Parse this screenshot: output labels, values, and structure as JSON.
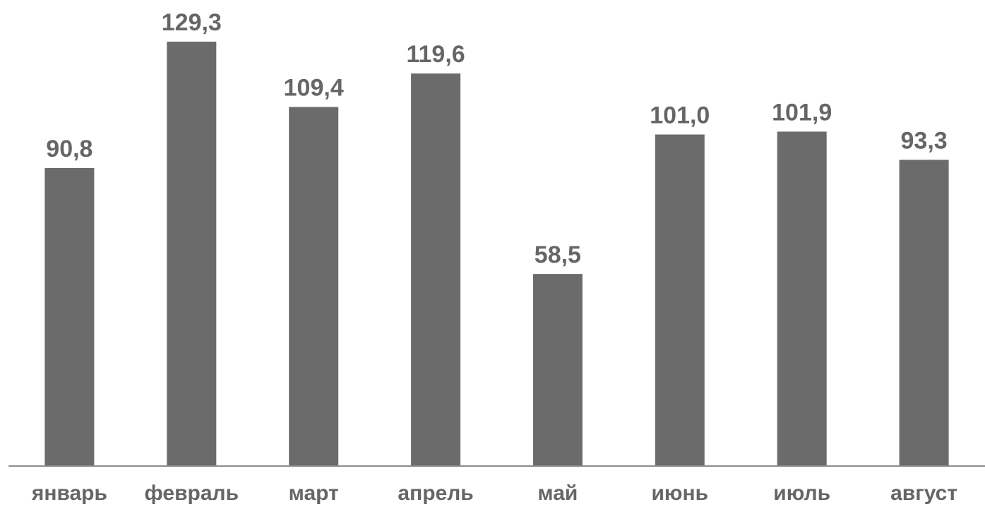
{
  "chart_data": {
    "type": "bar",
    "categories": [
      "январь",
      "февраль",
      "март",
      "апрель",
      "май",
      "июнь",
      "июль",
      "август"
    ],
    "values": [
      90.8,
      129.3,
      109.4,
      119.6,
      58.5,
      101.0,
      101.9,
      93.3
    ],
    "value_labels": [
      "90,8",
      "129,3",
      "109,4",
      "119,6",
      "58,5",
      "101,0",
      "101,9",
      "93,3"
    ],
    "bar_color": "#6b6b6b",
    "text_color": "#666666",
    "ylim": [
      0,
      132
    ],
    "grid": false,
    "legend": "none"
  }
}
